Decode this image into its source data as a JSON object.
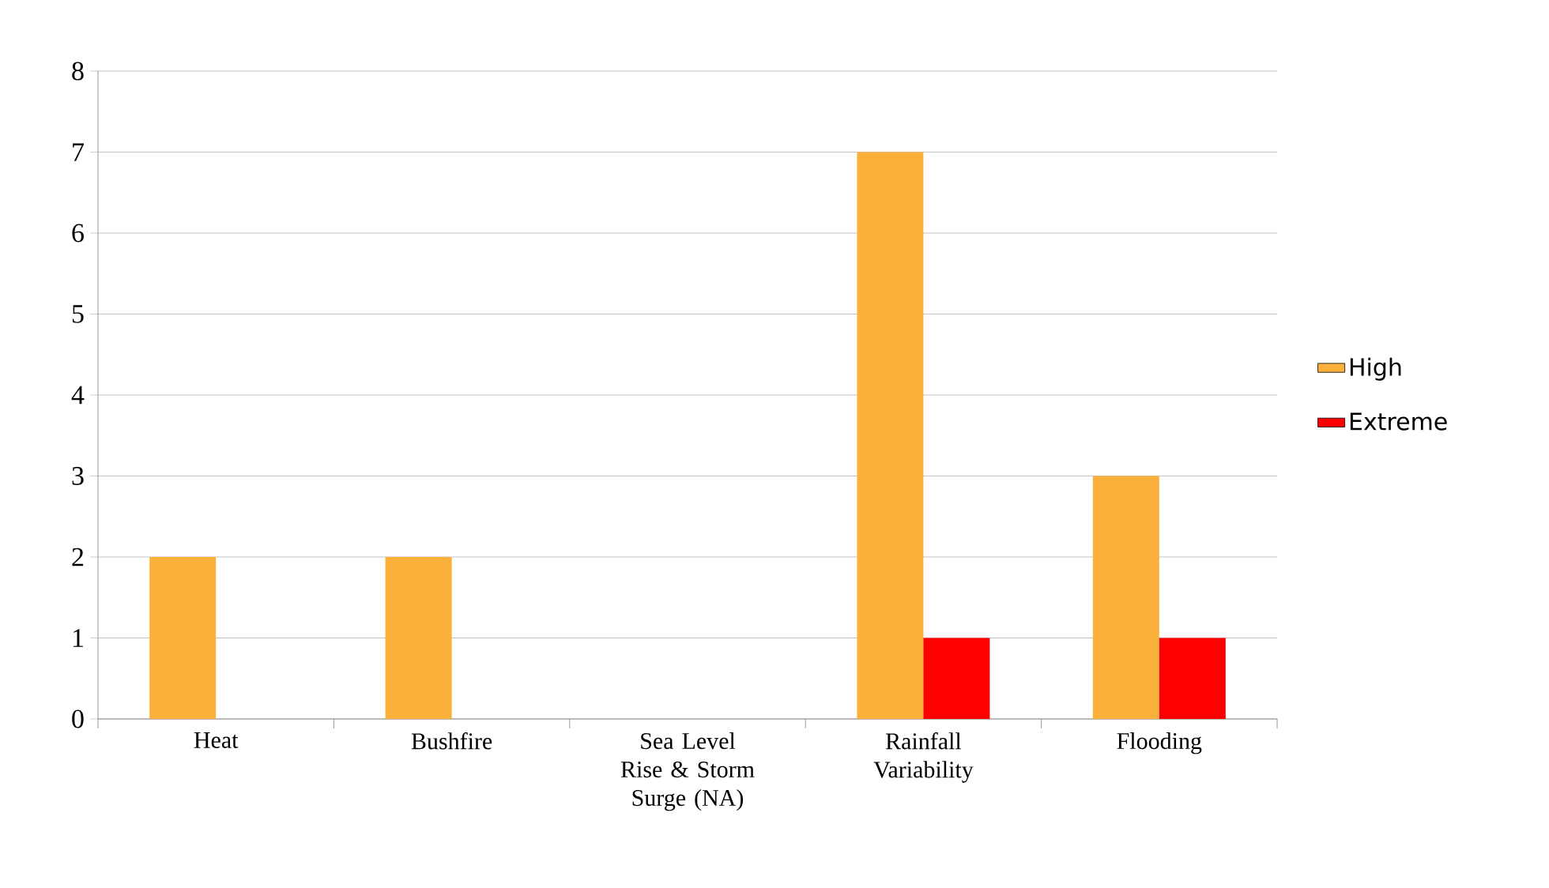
{
  "chart_data": {
    "type": "bar",
    "categories": [
      "Heat",
      "Bushfire",
      "Sea Level Rise & Storm Surge (NA)",
      "Rainfall Variability",
      "Flooding"
    ],
    "series": [
      {
        "name": "High",
        "color": "#fbb03b",
        "values": [
          2,
          2,
          0,
          7,
          3
        ]
      },
      {
        "name": "Extreme",
        "color": "#ff0000",
        "values": [
          0,
          0,
          0,
          1,
          1
        ]
      }
    ],
    "ylim": [
      0,
      8
    ],
    "yticks": [
      0,
      1,
      2,
      3,
      4,
      5,
      6,
      7,
      8
    ],
    "grid": "y",
    "legend": "right"
  }
}
